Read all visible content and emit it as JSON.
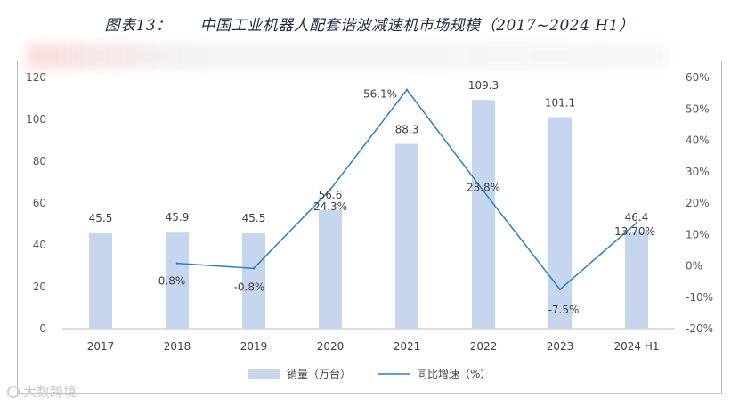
{
  "title": {
    "label": "图表13：",
    "text": "中国工业机器人配套谐波减速机市场规模（2017~2024 H1）"
  },
  "watermark_text": "大数跨境",
  "chart_data": {
    "type": "bar",
    "categories": [
      "2017",
      "2018",
      "2019",
      "2020",
      "2021",
      "2022",
      "2023",
      "2024 H1"
    ],
    "series": [
      {
        "name": "销量（万台）",
        "type": "bar",
        "axis": "left",
        "values": [
          45.5,
          45.9,
          45.5,
          56.6,
          88.3,
          109.3,
          101.1,
          46.4
        ],
        "labels": [
          "45.5",
          "45.9",
          "45.5",
          "56.6",
          "88.3",
          "109.3",
          "101.1",
          "46.4"
        ],
        "color": "#c6d6ef"
      },
      {
        "name": "同比增速（%）",
        "type": "line",
        "axis": "right",
        "values": [
          null,
          0.8,
          -0.8,
          24.3,
          56.1,
          23.8,
          -7.5,
          13.7
        ],
        "labels": [
          "",
          "0.8%",
          "-0.8%",
          "24.3%",
          "56.1%",
          "23.8%",
          "-7.5%",
          "13.70%"
        ],
        "color": "#2e7dc7"
      }
    ],
    "yleft": {
      "lim": [
        0,
        120
      ],
      "ticks": [
        "0",
        "20",
        "40",
        "60",
        "80",
        "100",
        "120"
      ]
    },
    "yright": {
      "lim": [
        -20,
        60
      ],
      "ticks": [
        "-20%",
        "-10%",
        "0%",
        "10%",
        "20%",
        "30%",
        "40%",
        "50%",
        "60%"
      ]
    },
    "legend_position": "bottom-center",
    "grid": false
  }
}
